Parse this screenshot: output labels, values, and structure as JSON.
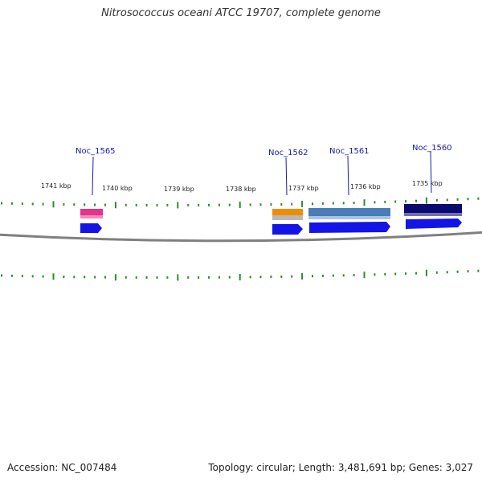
{
  "title": "Nitrosococcus oceani ATCC 19707, complete genome",
  "footer": {
    "accession": "Accession: NC_007484",
    "summary": "Topology: circular; Length: 3,481,691 bp; Genes: 3,027"
  },
  "colors": {
    "tick": "#2e8b2e",
    "backbone": "#808080",
    "label": "#1a1aa8",
    "cds": "#1414e6"
  },
  "ruler": [
    {
      "label": "1741 kbp"
    },
    {
      "label": "1740 kbp"
    },
    {
      "label": "1739 kbp"
    },
    {
      "label": "1738 kbp"
    },
    {
      "label": "1737 kbp"
    },
    {
      "label": "1736 kbp"
    },
    {
      "label": "1735 kbp"
    }
  ],
  "genes": [
    {
      "name": "Noc_1565",
      "feature_color": "#e8308c"
    },
    {
      "name": "Noc_1562",
      "feature_color": "#f08c00"
    },
    {
      "name": "Noc_1561",
      "feature_color": "#4a7cb8"
    },
    {
      "name": "Noc_1560",
      "feature_color": "#0a0a70"
    }
  ]
}
